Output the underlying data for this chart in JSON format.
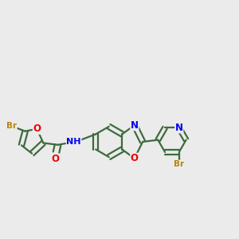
{
  "bg_color": "#ebebeb",
  "bond_color": "#3d6b3d",
  "bond_width": 1.6,
  "atom_colors": {
    "Br": "#b8860b",
    "O": "#ee0000",
    "N": "#0000ee",
    "C": "#3d6b3d"
  },
  "font_size": 8.5
}
